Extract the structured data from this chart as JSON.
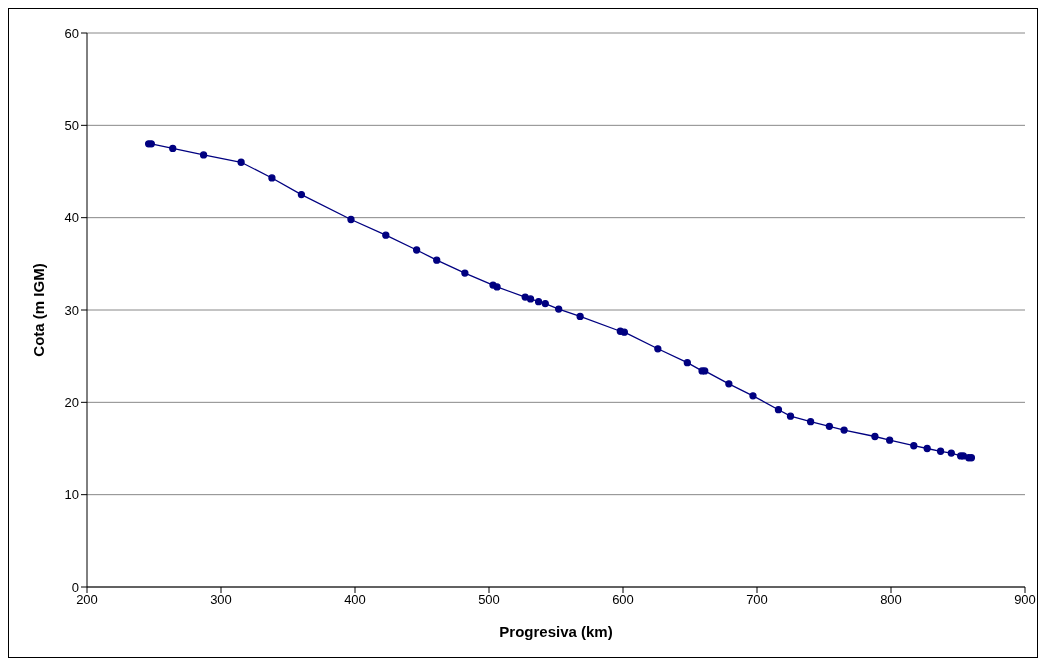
{
  "chart_data": {
    "type": "line",
    "xlabel": "Progresiva (km)",
    "ylabel": "Cota (m IGM)",
    "series": [
      {
        "color": "#000080",
        "x": [
          246,
          248,
          264,
          287,
          315,
          338,
          360,
          397,
          423,
          446,
          461,
          482,
          503,
          506,
          527,
          531,
          537,
          542,
          552,
          568,
          598,
          601,
          626,
          648,
          659,
          661,
          679,
          697,
          716,
          725,
          740,
          754,
          765,
          788,
          799,
          817,
          827,
          837,
          845,
          852,
          854,
          858,
          860
        ],
        "values": [
          48.0,
          48.0,
          47.5,
          46.8,
          46.0,
          44.3,
          42.5,
          39.8,
          38.1,
          36.5,
          35.4,
          34.0,
          32.7,
          32.5,
          31.4,
          31.2,
          30.9,
          30.7,
          30.1,
          29.3,
          27.7,
          27.6,
          25.8,
          24.3,
          23.4,
          23.4,
          22.0,
          20.7,
          19.2,
          18.5,
          17.9,
          17.4,
          17.0,
          16.3,
          15.9,
          15.3,
          15.0,
          14.7,
          14.5,
          14.2,
          14.2,
          14.0,
          14.0
        ]
      }
    ],
    "xlim": [
      200,
      900
    ],
    "xticks": [
      200,
      300,
      400,
      500,
      600,
      700,
      800,
      900
    ],
    "ylim": [
      0,
      60
    ],
    "yticks": [
      0,
      10,
      20,
      30,
      40,
      50,
      60
    ],
    "grid": "y",
    "marker": "circle",
    "line_style": "solid",
    "legend": false
  }
}
